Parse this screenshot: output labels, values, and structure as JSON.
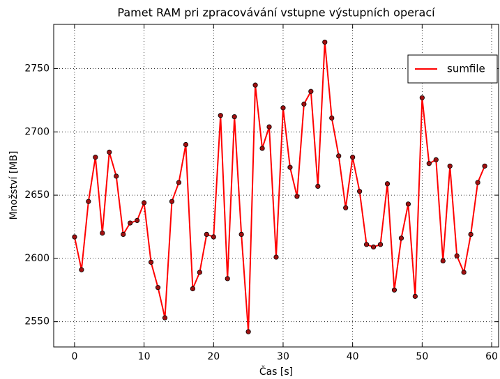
{
  "chart_data": {
    "type": "line",
    "title": "Pamet RAM pri zpracovávání vstupne výstupních operací",
    "xlabel": "Čas [s]",
    "ylabel": "Množství [MB]",
    "x": [
      0,
      1,
      2,
      3,
      4,
      5,
      6,
      7,
      8,
      9,
      10,
      11,
      12,
      13,
      14,
      15,
      16,
      17,
      18,
      19,
      20,
      21,
      22,
      23,
      24,
      25,
      26,
      27,
      28,
      29,
      30,
      31,
      32,
      33,
      34,
      35,
      36,
      37,
      38,
      39,
      40,
      41,
      42,
      43,
      44,
      45,
      46,
      47,
      48,
      49,
      50,
      51,
      52,
      53,
      54,
      55,
      56,
      57,
      58,
      59
    ],
    "series": [
      {
        "name": "sumfile",
        "color": "#ff0000",
        "marker_color": "#a01010",
        "values": [
          2617,
          2591,
          2645,
          2680,
          2620,
          2684,
          2665,
          2619,
          2628,
          2630,
          2644,
          2597,
          2577,
          2553,
          2645,
          2660,
          2690,
          2576,
          2589,
          2619,
          2617,
          2713,
          2584,
          2712,
          2619,
          2542,
          2737,
          2687,
          2704,
          2601,
          2719,
          2672,
          2649,
          2722,
          2732,
          2657,
          2771,
          2711,
          2681,
          2640,
          2680,
          2653,
          2611,
          2609,
          2611,
          2659,
          2575,
          2616,
          2643,
          2570,
          2727,
          2675,
          2678,
          2598,
          2673,
          2602,
          2589,
          2619,
          2660,
          2673
        ]
      }
    ],
    "xlim": [
      -3,
      61
    ],
    "xticks": [
      0,
      10,
      20,
      30,
      40,
      50,
      60
    ],
    "ylim": [
      2530,
      2785
    ],
    "yticks": [
      2550,
      2600,
      2650,
      2700,
      2750
    ],
    "grid": true,
    "legend": "upper right"
  }
}
